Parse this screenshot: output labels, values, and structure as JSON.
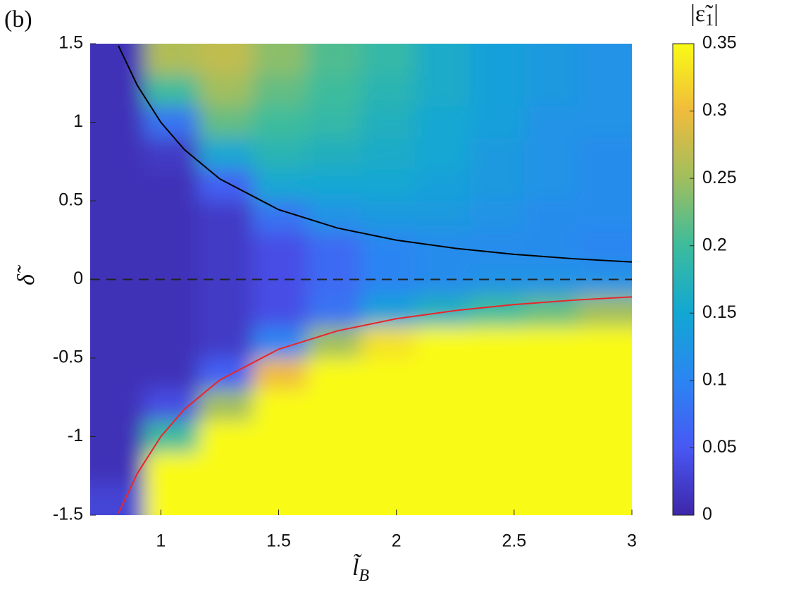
{
  "chart_data": {
    "type": "heatmap",
    "panel_label": "(b)",
    "xlabel": "l̃",
    "xlabel_sub": "B",
    "ylabel": "δ̃",
    "colorbar_label": [
      "|ε̃",
      "1",
      "|"
    ],
    "xlim": [
      0.7,
      3
    ],
    "ylim": [
      -1.5,
      1.5
    ],
    "xticks": [
      1,
      1.5,
      2,
      2.5,
      3
    ],
    "yticks": [
      -1.5,
      -1,
      -0.5,
      0,
      0.5,
      1,
      1.5
    ],
    "clim": [
      0,
      0.35
    ],
    "cticks": [
      0,
      0.05,
      0.1,
      0.15,
      0.2,
      0.25,
      0.3,
      0.35
    ],
    "colormap": [
      "#3e26a8",
      "#4858f4",
      "#2b85f2",
      "#12a7d3",
      "#3cbc9c",
      "#a0be5e",
      "#f0bb3c",
      "#f9fb15"
    ],
    "x": [
      0.815,
      1.045,
      1.275,
      1.505,
      1.735,
      1.965,
      2.195,
      2.425,
      2.655,
      2.885
    ],
    "y": [
      1.4,
      1.2,
      1.0,
      0.8,
      0.6,
      0.4,
      0.2,
      0,
      -0.2,
      -0.4,
      -0.6,
      -0.8,
      -1.0,
      -1.2,
      -1.4
    ],
    "z": [
      [
        0.01,
        0.26,
        0.27,
        0.24,
        0.21,
        0.19,
        0.16,
        0.14,
        0.13,
        0.12
      ],
      [
        0.01,
        0.2,
        0.25,
        0.22,
        0.2,
        0.18,
        0.16,
        0.14,
        0.13,
        0.12
      ],
      [
        0.01,
        0.08,
        0.22,
        0.2,
        0.19,
        0.17,
        0.15,
        0.14,
        0.12,
        0.12
      ],
      [
        0.01,
        0.02,
        0.15,
        0.18,
        0.17,
        0.16,
        0.15,
        0.13,
        0.12,
        0.11
      ],
      [
        0.01,
        0.01,
        0.06,
        0.15,
        0.15,
        0.15,
        0.14,
        0.13,
        0.12,
        0.11
      ],
      [
        0.01,
        0.01,
        0.02,
        0.08,
        0.12,
        0.13,
        0.13,
        0.12,
        0.11,
        0.11
      ],
      [
        0.01,
        0.01,
        0.02,
        0.04,
        0.07,
        0.1,
        0.11,
        0.11,
        0.11,
        0.1
      ],
      [
        0.01,
        0.01,
        0.02,
        0.04,
        0.07,
        0.1,
        0.11,
        0.12,
        0.12,
        0.12
      ],
      [
        0.01,
        0.01,
        0.02,
        0.04,
        0.08,
        0.14,
        0.17,
        0.2,
        0.22,
        0.25
      ],
      [
        0.01,
        0.01,
        0.02,
        0.1,
        0.25,
        0.33,
        0.35,
        0.35,
        0.35,
        0.35
      ],
      [
        0.01,
        0.01,
        0.06,
        0.3,
        0.35,
        0.35,
        0.35,
        0.35,
        0.35,
        0.35
      ],
      [
        0.01,
        0.04,
        0.25,
        0.35,
        0.35,
        0.35,
        0.35,
        0.35,
        0.35,
        0.35
      ],
      [
        0.01,
        0.2,
        0.35,
        0.35,
        0.35,
        0.35,
        0.35,
        0.35,
        0.35,
        0.35
      ],
      [
        0.01,
        0.35,
        0.35,
        0.35,
        0.35,
        0.35,
        0.35,
        0.35,
        0.35,
        0.35
      ],
      [
        0.03,
        0.35,
        0.35,
        0.35,
        0.35,
        0.35,
        0.35,
        0.35,
        0.35,
        0.35
      ]
    ],
    "curves": [
      {
        "color": "#000000",
        "dash": false,
        "x": [
          0.82,
          0.9,
          1,
          1.1,
          1.25,
          1.5,
          1.75,
          2,
          2.25,
          2.5,
          2.75,
          3
        ],
        "y": [
          1.487,
          1.235,
          1,
          0.826,
          0.64,
          0.444,
          0.327,
          0.25,
          0.198,
          0.16,
          0.132,
          0.111
        ]
      },
      {
        "color": "#e8262a",
        "dash": false,
        "x": [
          0.82,
          0.9,
          1,
          1.1,
          1.25,
          1.5,
          1.75,
          2,
          2.25,
          2.5,
          2.75,
          3
        ],
        "y": [
          -1.487,
          -1.235,
          -1,
          -0.826,
          -0.64,
          -0.444,
          -0.327,
          -0.25,
          -0.198,
          -0.16,
          -0.132,
          -0.111
        ]
      },
      {
        "color": "#222222",
        "dash": true,
        "x": [
          0.7,
          3
        ],
        "y": [
          0,
          0
        ]
      }
    ]
  }
}
